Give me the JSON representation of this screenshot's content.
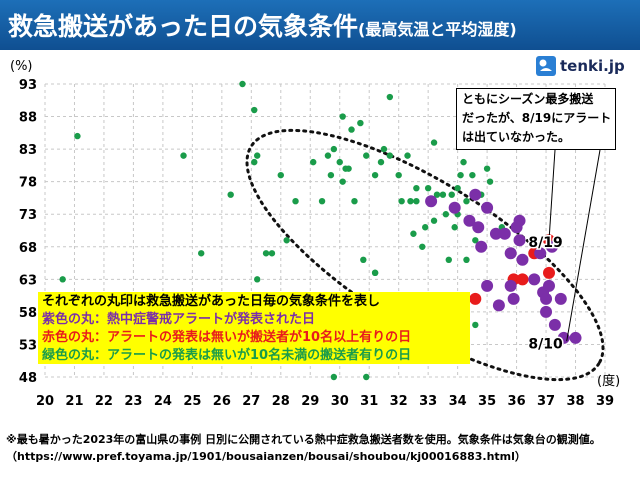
{
  "title": {
    "main": "救急搬送があった日の気象条件",
    "sub": "(最高気温と平均湿度)"
  },
  "logo": {
    "text": "tenki.jp"
  },
  "callout": {
    "line1": "ともにシーズン最多搬送",
    "line2": "だったが、8/19にアラート",
    "line3": "は出ていなかった。"
  },
  "legend": {
    "header": "それぞれの丸印は救急搬送があった日毎の気象条件を表し",
    "purple": "紫色の丸：熱中症警戒アラートが発表された日",
    "red": "赤色の丸：アラートの発表は無いが搬送者が10名以上有りの日",
    "green": "緑色の丸：アラートの発表は無いが10名未満の搬送者有りの日"
  },
  "footnote": "※最も暑かった2023年の富山県の事例 日別に公開されている熱中症救急搬送者数を使用。気象条件は気象台の観測値。（https://www.pref.toyama.jp/1901/bousaianzen/bousai/shoubou/kj00016883.html）",
  "chart_data": {
    "type": "scatter",
    "xlabel": "(度)",
    "ylabel": "(%)",
    "xlim": [
      20,
      39
    ],
    "ylim": [
      48,
      93
    ],
    "xticks": [
      20,
      21,
      22,
      23,
      24,
      25,
      26,
      27,
      28,
      29,
      30,
      31,
      32,
      33,
      34,
      35,
      36,
      37,
      38,
      39
    ],
    "yticks": [
      93,
      88,
      83,
      78,
      73,
      68,
      63,
      58,
      53,
      48
    ],
    "grid": true,
    "colors": {
      "purple": "#7b2fa8",
      "red": "#e81c1c",
      "green": "#1a9c4a"
    },
    "series": [
      {
        "name": "紫色の丸",
        "color": "purple",
        "points": [
          [
            33.1,
            75
          ],
          [
            33.9,
            74
          ],
          [
            34.4,
            72
          ],
          [
            34.6,
            76
          ],
          [
            34.7,
            71
          ],
          [
            35.0,
            74
          ],
          [
            35.3,
            70
          ],
          [
            34.8,
            68
          ],
          [
            35.0,
            62
          ],
          [
            35.6,
            70
          ],
          [
            35.8,
            67
          ],
          [
            35.9,
            60
          ],
          [
            36.0,
            71
          ],
          [
            36.1,
            69
          ],
          [
            36.2,
            66
          ],
          [
            36.6,
            63
          ],
          [
            36.8,
            67
          ],
          [
            36.9,
            61
          ],
          [
            37.0,
            60
          ],
          [
            37.3,
            56
          ],
          [
            37.1,
            62
          ],
          [
            37.5,
            60
          ],
          [
            37.6,
            54
          ],
          [
            38.0,
            54
          ],
          [
            36.1,
            72
          ],
          [
            35.8,
            62
          ],
          [
            35.4,
            59
          ],
          [
            37.0,
            58
          ],
          [
            37.2,
            68
          ]
        ]
      },
      {
        "name": "赤色の丸",
        "color": "red",
        "points": [
          [
            34.6,
            60
          ],
          [
            35.9,
            63
          ],
          [
            36.2,
            63
          ],
          [
            36.6,
            67
          ],
          [
            37.1,
            64
          ],
          [
            37.1,
            69
          ]
        ]
      },
      {
        "name": "緑色の丸",
        "color": "green",
        "points": [
          [
            20.6,
            63
          ],
          [
            21.1,
            85
          ],
          [
            24.7,
            82
          ],
          [
            25.3,
            67
          ],
          [
            26.3,
            76
          ],
          [
            26.7,
            93
          ],
          [
            27.1,
            81
          ],
          [
            27.1,
            89
          ],
          [
            27.2,
            82
          ],
          [
            27.2,
            63
          ],
          [
            27.5,
            67
          ],
          [
            27.7,
            67
          ],
          [
            28.0,
            79
          ],
          [
            28.2,
            69
          ],
          [
            28.5,
            75
          ],
          [
            29.1,
            81
          ],
          [
            29.4,
            75
          ],
          [
            29.6,
            82
          ],
          [
            29.7,
            79
          ],
          [
            29.8,
            83
          ],
          [
            30.0,
            81
          ],
          [
            30.1,
            78
          ],
          [
            30.1,
            88
          ],
          [
            30.2,
            80
          ],
          [
            30.3,
            80
          ],
          [
            30.4,
            86
          ],
          [
            30.5,
            75
          ],
          [
            30.7,
            87
          ],
          [
            30.8,
            66
          ],
          [
            30.9,
            82
          ],
          [
            31.2,
            79
          ],
          [
            31.2,
            64
          ],
          [
            31.4,
            81
          ],
          [
            31.5,
            83
          ],
          [
            31.7,
            91
          ],
          [
            31.7,
            82
          ],
          [
            32.0,
            79
          ],
          [
            32.1,
            75
          ],
          [
            32.3,
            82
          ],
          [
            32.4,
            75
          ],
          [
            32.5,
            70
          ],
          [
            32.6,
            77
          ],
          [
            32.6,
            75
          ],
          [
            32.8,
            68
          ],
          [
            32.9,
            71
          ],
          [
            33.0,
            77
          ],
          [
            33.2,
            84
          ],
          [
            33.2,
            72
          ],
          [
            33.3,
            76
          ],
          [
            33.5,
            76
          ],
          [
            33.6,
            73
          ],
          [
            33.8,
            76
          ],
          [
            33.9,
            71
          ],
          [
            34.0,
            77
          ],
          [
            34.0,
            73
          ],
          [
            34.1,
            79
          ],
          [
            34.2,
            81
          ],
          [
            34.3,
            75
          ],
          [
            34.5,
            79
          ],
          [
            34.6,
            69
          ],
          [
            34.8,
            76
          ],
          [
            35.0,
            80
          ],
          [
            35.1,
            78
          ],
          [
            35.5,
            71
          ],
          [
            31.2,
            64
          ],
          [
            29.8,
            48
          ],
          [
            30.9,
            48
          ],
          [
            34.6,
            56
          ],
          [
            34.3,
            66
          ],
          [
            33.7,
            66
          ]
        ]
      }
    ],
    "annotations": [
      {
        "text": "8/19",
        "x": 36.4,
        "y": 68.6
      },
      {
        "text": "8/10",
        "x": 36.4,
        "y": 53
      }
    ]
  }
}
